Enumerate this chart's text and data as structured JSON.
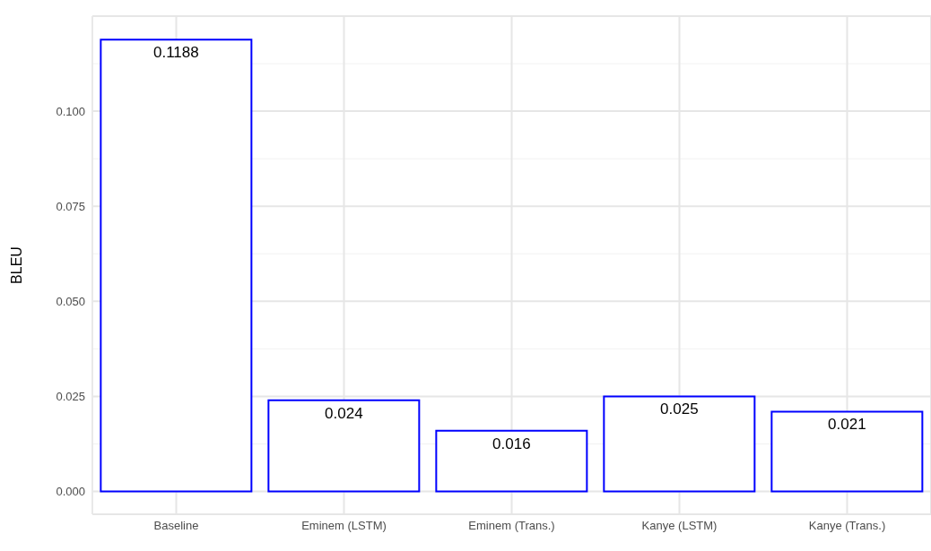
{
  "chart_data": {
    "type": "bar",
    "ylabel": "BLEU",
    "categories": [
      "Baseline",
      "Eminem (LSTM)",
      "Eminem (Trans.)",
      "Kanye (LSTM)",
      "Kanye (Trans.)"
    ],
    "values": [
      0.1188,
      0.024,
      0.016,
      0.025,
      0.021
    ],
    "color": "#0000ff",
    "ylim": [
      -0.006,
      0.125
    ],
    "yticks": [
      {
        "value": 0,
        "label": "0.000"
      },
      {
        "value": 0.025,
        "label": "0.025"
      },
      {
        "value": 0.05,
        "label": "0.050"
      },
      {
        "value": 0.075,
        "label": "0.075"
      },
      {
        "value": 0.1,
        "label": "0.100"
      }
    ],
    "grid": true,
    "data_labels": true
  }
}
